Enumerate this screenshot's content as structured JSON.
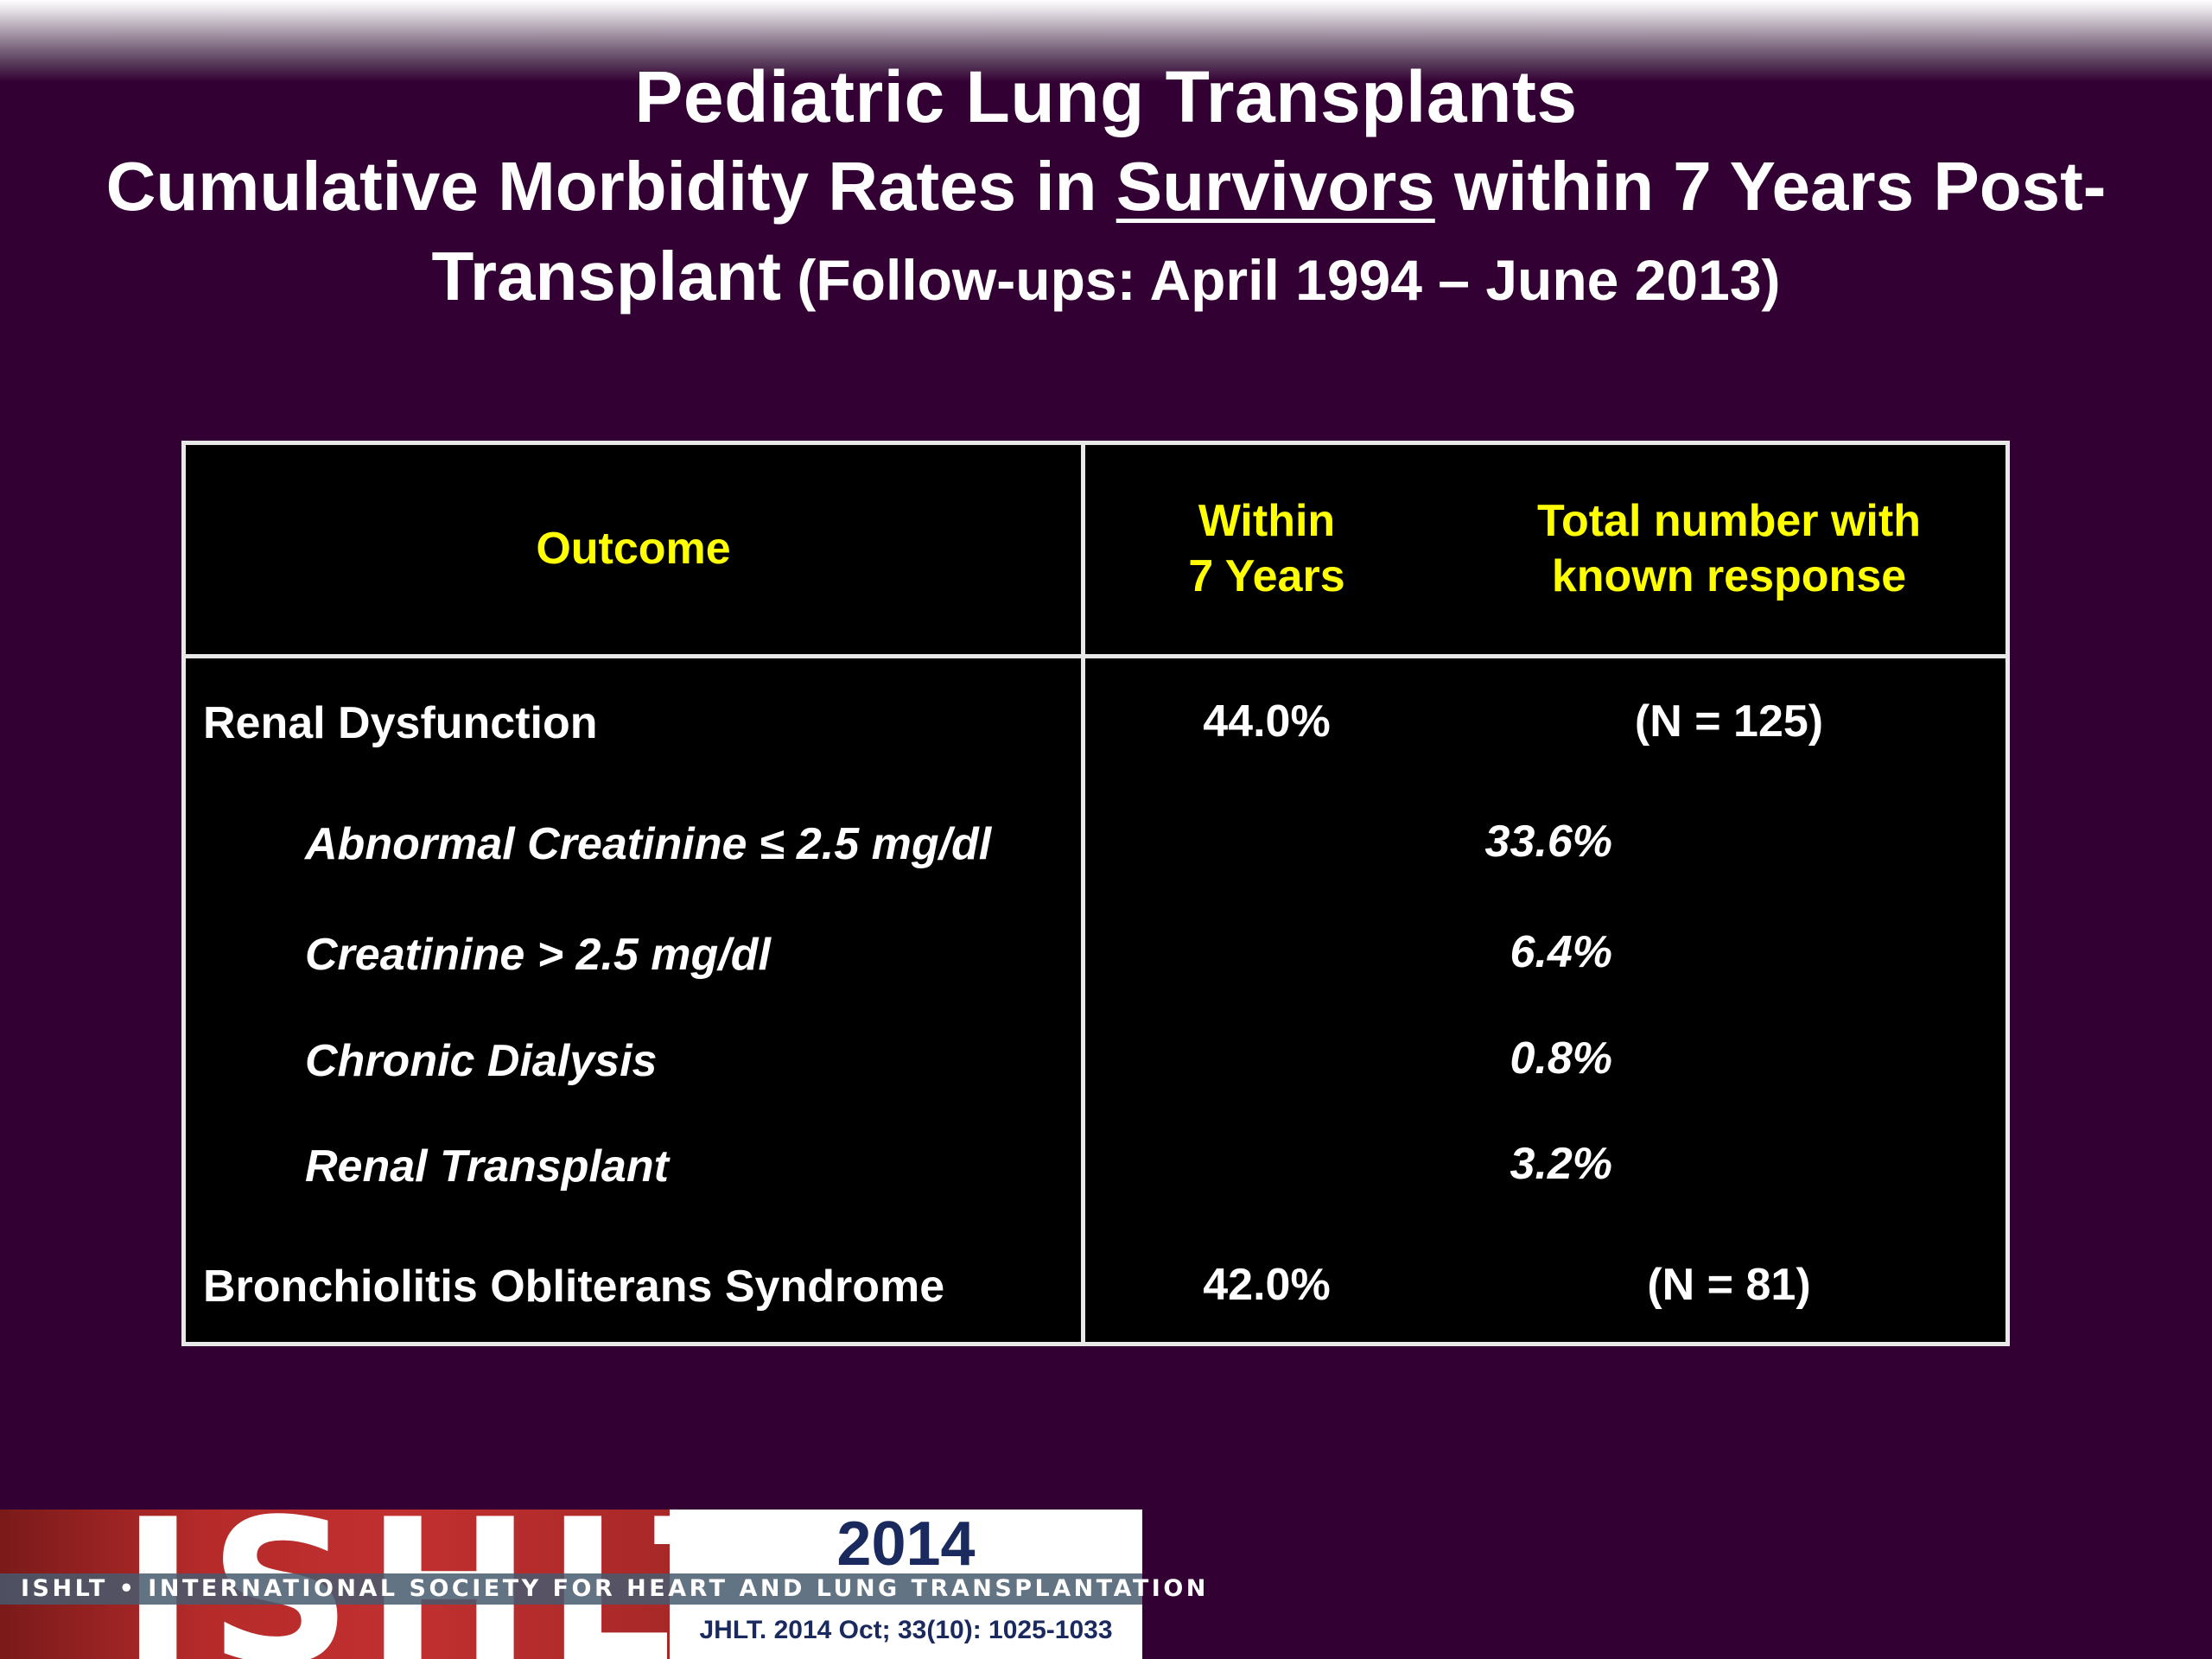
{
  "title": {
    "line1": "Pediatric Lung Transplants",
    "line2_pre": "Cumulative Morbidity Rates in ",
    "line2_underlined": "Survivors",
    "line2_post": " within 7 Years Post-",
    "line3_main": "Transplant",
    "line3_paren": " (Follow-ups: April 1994 – June 2013)"
  },
  "table": {
    "headers": {
      "outcome": "Outcome",
      "within_line1": "Within",
      "within_line2": "7 Years",
      "total_line1": "Total number with",
      "total_line2": "known response"
    },
    "rows": [
      {
        "label": "Renal Dysfunction",
        "value": "44.0%",
        "n": "(N = 125)",
        "level": "main"
      },
      {
        "label": "Abnormal Creatinine ≤ 2.5 mg/dl",
        "value": "33.6%",
        "n": "",
        "level": "sub"
      },
      {
        "label": "Creatinine > 2.5 mg/dl",
        "value": "6.4%",
        "n": "",
        "level": "sub"
      },
      {
        "label": "Chronic Dialysis",
        "value": "0.8%",
        "n": "",
        "level": "sub"
      },
      {
        "label": "Renal Transplant",
        "value": "3.2%",
        "n": "",
        "level": "sub"
      },
      {
        "label": "Bronchiolitis Obliterans Syndrome",
        "value": "42.0%",
        "n": "(N = 81)",
        "level": "main"
      }
    ]
  },
  "footer": {
    "logo_letters": "ISHLT",
    "year": "2014",
    "society": "ISHLT • INTERNATIONAL SOCIETY FOR HEART AND LUNG TRANSPLANTATION",
    "citation": "JHLT. 2014 Oct; 33(10): 1025-1033"
  },
  "colors": {
    "background": "#330033",
    "header_text": "#ffff00",
    "table_bg": "#000000",
    "logo_red": "#c23030",
    "logo_navy": "#1a2a5e"
  }
}
